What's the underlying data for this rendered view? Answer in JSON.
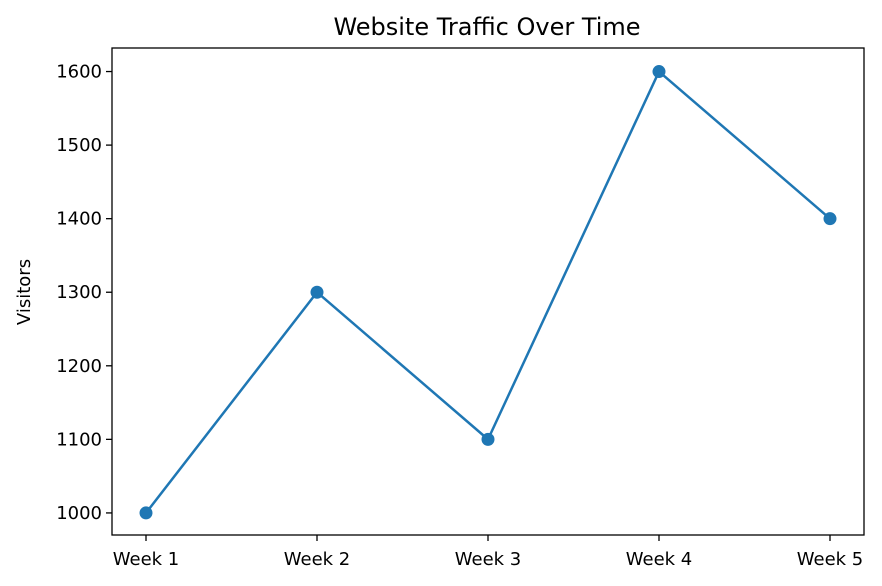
{
  "chart_data": {
    "type": "line",
    "title": "Website Traffic Over Time",
    "xlabel": "",
    "ylabel": "Visitors",
    "categories": [
      "Week 1",
      "Week 2",
      "Week 3",
      "Week 4",
      "Week 5"
    ],
    "series": [
      {
        "values": [
          1000,
          1300,
          1100,
          1600,
          1400
        ],
        "color": "#1f77b4",
        "marker": "circle"
      }
    ],
    "ylim": [
      970,
      1632
    ],
    "yticks": [
      1000,
      1100,
      1200,
      1300,
      1400,
      1500,
      1600
    ],
    "ytick_labels": [
      "1000",
      "1100",
      "1200",
      "1300",
      "1400",
      "1500",
      "1600"
    ],
    "grid": false,
    "legend": "none"
  }
}
